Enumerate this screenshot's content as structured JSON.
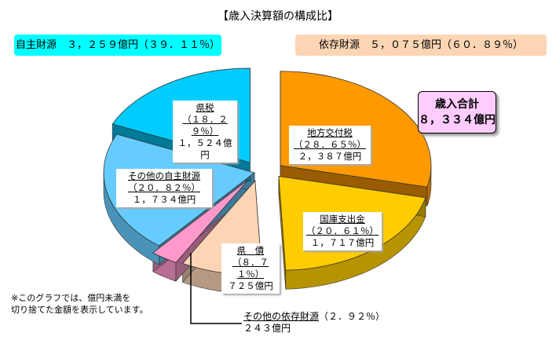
{
  "title": "【歳入決算額の構成比】",
  "banners": {
    "own": "自主財源　３，２５９億円（３９．１１％）",
    "dependent": "依存財源　５，０７５億円（６０．８９％）"
  },
  "total": {
    "label": "歳入合計",
    "value": "８，３３４億円"
  },
  "note": {
    "line1": "※このグラフでは、億円未満を",
    "line2": "切り捨てた金額を表示しています。"
  },
  "colors": {
    "kenzei": "#00ccff",
    "other_own": "#66ccff",
    "chiho": "#ff9900",
    "kokko": "#ffcc00",
    "kensai": "#fcd5b4",
    "other_dep": "#ff99cc"
  },
  "chart_data": {
    "type": "pie",
    "title": "【歳入決算額の構成比】",
    "slices": [
      {
        "name": "地方交付税",
        "value": 2387,
        "percent": 28.65,
        "pct_label": "（２８．６５％）",
        "amount_label": "２，３８７億円"
      },
      {
        "name": "国庫支出金",
        "value": 1717,
        "percent": 20.61,
        "pct_label": "（２０．６１％）",
        "amount_label": "１，７１７億円"
      },
      {
        "name": "県　債",
        "value": 725,
        "percent": 8.71,
        "pct_label": "（８．７１％）",
        "amount_label": "７２５億円"
      },
      {
        "name": "その他の依存財源",
        "value": 243,
        "percent": 2.92,
        "pct_label": "（２．９２％）",
        "amount_label": "２４３億円"
      },
      {
        "name": "その他の自主財源",
        "value": 1734,
        "percent": 20.82,
        "pct_label": "（２０．８２％）",
        "amount_label": "１，７３４億円"
      },
      {
        "name": "県税",
        "value": 1524,
        "percent": 18.29,
        "pct_label": "（１８．２９％）",
        "amount_label": "１，５２４億円"
      }
    ]
  }
}
